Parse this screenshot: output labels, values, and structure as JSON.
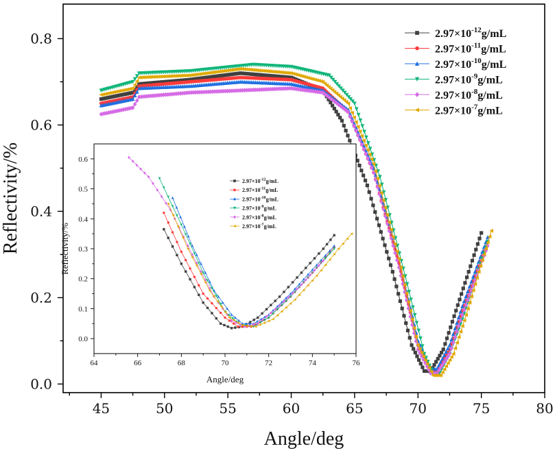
{
  "chart_data": [
    {
      "type": "line",
      "role": "main",
      "title": "",
      "xlabel": "Angle/deg",
      "ylabel": "Reflectivity/%",
      "xlim": [
        42,
        80
      ],
      "ylim": [
        -0.02,
        0.88
      ],
      "xticks": [
        45,
        50,
        55,
        60,
        65,
        70,
        75,
        80
      ],
      "xtick_labels": [
        "45",
        "50",
        "55",
        "60",
        "65",
        "70",
        "75",
        "80"
      ],
      "yticks": [
        0.0,
        0.2,
        0.4,
        0.6,
        0.8
      ],
      "ytick_labels": [
        "0.0",
        "0.2",
        "0.4",
        "0.6",
        "0.8"
      ],
      "legend_position": "top-right",
      "series": [
        {
          "name": "2.97×10⁻¹²g/mL",
          "base": "2.97×10",
          "exp": "-12",
          "unit": "g/mL",
          "color": "#404040",
          "marker": "square",
          "x": [
            45.0,
            47.5,
            48.0,
            52.0,
            56.0,
            60.0,
            62.5,
            64.0,
            66.0,
            68.0,
            69.5,
            70.5,
            71.0,
            72.0,
            73.0,
            74.0,
            75.0
          ],
          "y": [
            0.66,
            0.675,
            0.695,
            0.705,
            0.72,
            0.71,
            0.68,
            0.61,
            0.46,
            0.26,
            0.09,
            0.03,
            0.03,
            0.08,
            0.17,
            0.26,
            0.35
          ]
        },
        {
          "name": "2.97×10⁻¹¹g/mL",
          "base": "2.97×10",
          "exp": "-11",
          "unit": "g/mL",
          "color": "#ff3b3b",
          "marker": "circle",
          "x": [
            45.0,
            47.5,
            48.0,
            52.0,
            56.0,
            60.0,
            62.5,
            64.5,
            66.5,
            68.5,
            70.0,
            71.0,
            71.5,
            72.5,
            73.5,
            74.5,
            75.5
          ],
          "y": [
            0.65,
            0.665,
            0.69,
            0.7,
            0.71,
            0.705,
            0.685,
            0.63,
            0.49,
            0.28,
            0.09,
            0.03,
            0.03,
            0.08,
            0.17,
            0.25,
            0.33
          ]
        },
        {
          "name": "2.97×10⁻¹⁰g/mL",
          "base": "2.97×10",
          "exp": "-10",
          "unit": "g/mL",
          "color": "#1f6fe0",
          "marker": "triangle-up",
          "x": [
            45.0,
            47.5,
            48.0,
            52.0,
            56.0,
            60.0,
            62.5,
            64.5,
            66.5,
            68.5,
            70.0,
            71.0,
            71.5,
            72.5,
            73.5,
            74.5,
            75.5
          ],
          "y": [
            0.645,
            0.66,
            0.685,
            0.69,
            0.7,
            0.695,
            0.68,
            0.635,
            0.5,
            0.29,
            0.1,
            0.035,
            0.035,
            0.09,
            0.18,
            0.26,
            0.34
          ]
        },
        {
          "name": "2.97×10⁻⁹g/mL",
          "base": "2.97×10",
          "exp": "-9",
          "unit": "g/mL",
          "color": "#11b57a",
          "marker": "triangle-down",
          "x": [
            45.0,
            47.5,
            48.0,
            52.0,
            57.0,
            60.0,
            63.0,
            65.0,
            67.0,
            69.0,
            70.5,
            71.2,
            71.7,
            72.5,
            73.5,
            74.5,
            75.5
          ],
          "y": [
            0.68,
            0.7,
            0.72,
            0.725,
            0.74,
            0.735,
            0.715,
            0.65,
            0.48,
            0.25,
            0.07,
            0.025,
            0.025,
            0.07,
            0.15,
            0.24,
            0.33
          ]
        },
        {
          "name": "2.97×10⁻⁸g/mL",
          "base": "2.97×10",
          "exp": "-8",
          "unit": "g/mL",
          "color": "#d66be6",
          "marker": "diamond",
          "x": [
            45.0,
            47.5,
            48.0,
            52.0,
            56.0,
            60.0,
            62.5,
            64.5,
            66.5,
            68.5,
            70.0,
            71.0,
            71.5,
            72.5,
            73.5,
            74.5,
            75.5
          ],
          "y": [
            0.625,
            0.64,
            0.665,
            0.675,
            0.68,
            0.685,
            0.675,
            0.63,
            0.49,
            0.27,
            0.08,
            0.025,
            0.025,
            0.07,
            0.16,
            0.24,
            0.32
          ]
        },
        {
          "name": "2.97×10⁻⁷g/mL",
          "base": "2.97×10",
          "exp": "-7",
          "unit": "g/mL",
          "color": "#e0a800",
          "marker": "triangle-left",
          "x": [
            45.0,
            47.5,
            48.0,
            52.0,
            56.0,
            60.0,
            62.5,
            64.5,
            66.5,
            68.5,
            70.0,
            71.2,
            71.8,
            72.8,
            73.8,
            74.8,
            75.8
          ],
          "y": [
            0.67,
            0.685,
            0.71,
            0.715,
            0.73,
            0.72,
            0.7,
            0.65,
            0.51,
            0.29,
            0.09,
            0.02,
            0.02,
            0.07,
            0.16,
            0.26,
            0.355
          ]
        }
      ]
    },
    {
      "type": "line",
      "role": "inset",
      "title": "",
      "xlabel": "Angle/deg",
      "ylabel": "Reflectivity/%",
      "xlim": [
        64,
        76
      ],
      "ylim": [
        -0.05,
        0.65
      ],
      "xticks": [
        64,
        66,
        68,
        70,
        72,
        74,
        76
      ],
      "xtick_labels": [
        "64",
        "66",
        "68",
        "70",
        "72",
        "74",
        "76"
      ],
      "yticks": [
        0.0,
        0.1,
        0.2,
        0.3,
        0.4,
        0.5,
        0.6
      ],
      "ytick_labels": [
        "0.0",
        "0.1",
        "0.2",
        "0.3",
        "0.4",
        "0.5",
        "0.6"
      ],
      "legend_position": "center",
      "series": [
        {
          "name": "2.97×10⁻¹²g/mL",
          "base": "2.97×10",
          "exp": "-12",
          "unit": "g/mL",
          "color": "#404040",
          "marker": "square",
          "x": [
            67.2,
            68.0,
            69.0,
            69.8,
            70.3,
            70.8,
            71.5,
            72.5,
            73.5,
            74.5,
            75.0
          ],
          "y": [
            0.365,
            0.25,
            0.12,
            0.05,
            0.035,
            0.04,
            0.07,
            0.14,
            0.22,
            0.3,
            0.345
          ]
        },
        {
          "name": "2.97×10⁻¹¹g/mL",
          "base": "2.97×10",
          "exp": "-11",
          "unit": "g/mL",
          "color": "#ff3b3b",
          "marker": "circle",
          "x": [
            67.2,
            68.0,
            69.0,
            70.0,
            70.6,
            71.2,
            72.0,
            73.0,
            74.0,
            75.0
          ],
          "y": [
            0.42,
            0.29,
            0.15,
            0.07,
            0.04,
            0.04,
            0.07,
            0.14,
            0.22,
            0.305
          ]
        },
        {
          "name": "2.97×10⁻¹⁰g/mL",
          "base": "2.97×10",
          "exp": "-10",
          "unit": "g/mL",
          "color": "#1f6fe0",
          "marker": "triangle-up",
          "x": [
            67.6,
            68.5,
            69.5,
            70.3,
            70.8,
            71.3,
            72.0,
            73.0,
            74.0,
            75.0
          ],
          "y": [
            0.47,
            0.31,
            0.16,
            0.08,
            0.05,
            0.05,
            0.08,
            0.15,
            0.23,
            0.31
          ]
        },
        {
          "name": "2.97×10⁻⁹g/mL",
          "base": "2.97×10",
          "exp": "-9",
          "unit": "g/mL",
          "color": "#11b57a",
          "marker": "triangle-down",
          "x": [
            67.0,
            68.0,
            69.0,
            70.0,
            70.7,
            71.3,
            72.0,
            73.0,
            74.0,
            75.0
          ],
          "y": [
            0.535,
            0.38,
            0.22,
            0.09,
            0.045,
            0.04,
            0.07,
            0.14,
            0.22,
            0.3
          ]
        },
        {
          "name": "2.97×10⁻⁸g/mL",
          "base": "2.97×10",
          "exp": "-8",
          "unit": "g/mL",
          "color": "#d66be6",
          "marker": "diamond",
          "x": [
            65.6,
            66.5,
            67.5,
            68.5,
            69.5,
            70.3,
            70.9,
            71.5,
            72.5,
            73.5,
            74.5
          ],
          "y": [
            0.605,
            0.54,
            0.43,
            0.28,
            0.14,
            0.06,
            0.04,
            0.05,
            0.11,
            0.18,
            0.26
          ]
        },
        {
          "name": "2.97×10⁻⁷g/mL",
          "base": "2.97×10",
          "exp": "-7",
          "unit": "g/mL",
          "color": "#e0a800",
          "marker": "triangle-left",
          "x": [
            67.4,
            68.3,
            69.3,
            70.2,
            70.8,
            71.4,
            72.2,
            73.2,
            74.2,
            75.2,
            75.8
          ],
          "y": [
            0.45,
            0.3,
            0.16,
            0.07,
            0.045,
            0.04,
            0.065,
            0.13,
            0.21,
            0.3,
            0.35
          ]
        }
      ]
    }
  ]
}
